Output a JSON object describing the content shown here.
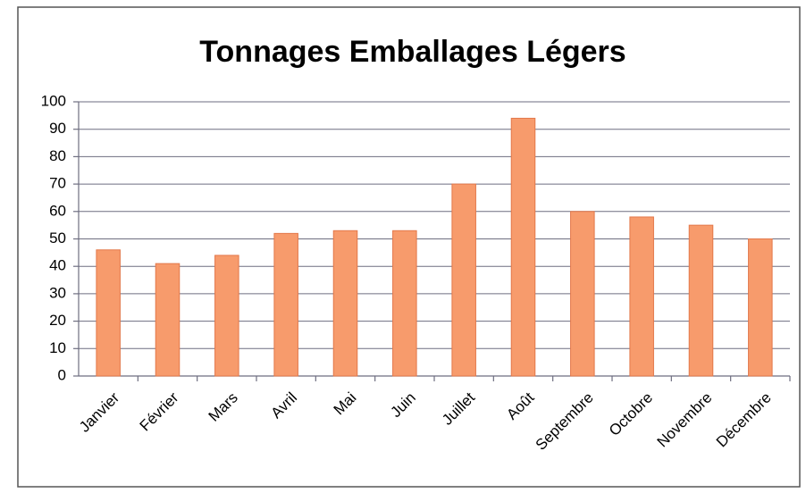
{
  "chart_data": {
    "type": "bar",
    "title": "Tonnages Emballages Légers",
    "categories": [
      "Janvier",
      "Février",
      "Mars",
      "Avril",
      "Mai",
      "Juin",
      "Juillet",
      "Août",
      "Septembre",
      "Octobre",
      "Novembre",
      "Décembre"
    ],
    "values": [
      46,
      41,
      44,
      52,
      53,
      53,
      70,
      94,
      60,
      58,
      55,
      50
    ],
    "color": "#f79b6c",
    "ylim": [
      0,
      100
    ],
    "yticks": [
      0,
      10,
      20,
      30,
      40,
      50,
      60,
      70,
      80,
      90,
      100
    ],
    "grid": true
  }
}
